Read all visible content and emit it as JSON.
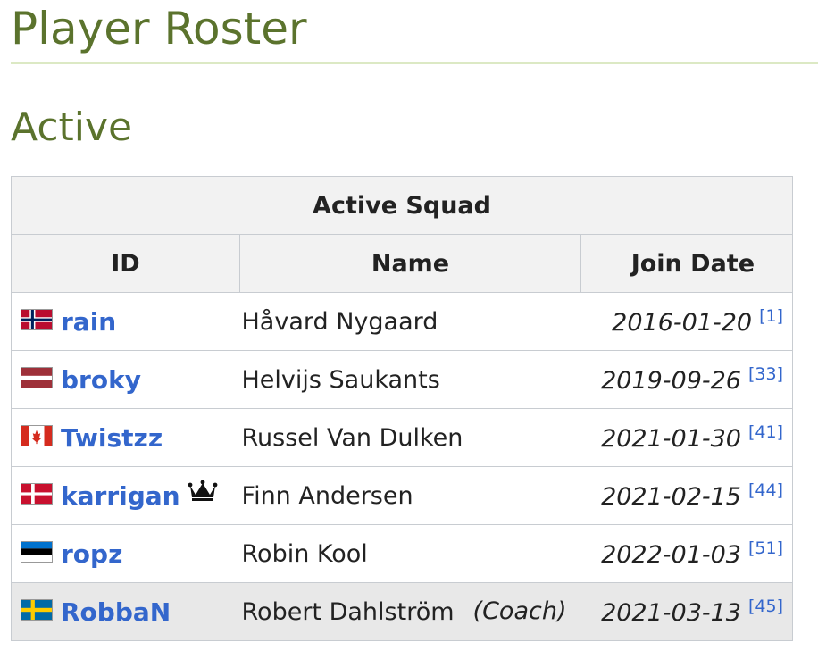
{
  "page": {
    "title": "Player Roster",
    "section_title": "Active"
  },
  "table": {
    "caption": "Active Squad",
    "headers": {
      "id": "ID",
      "name": "Name",
      "join_date": "Join Date"
    },
    "rows": [
      {
        "flag": "norway-flag-icon",
        "id": "rain",
        "name": "Håvard Nygaard",
        "role": "",
        "join_date": "2016-01-20",
        "ref": "[1]"
      },
      {
        "flag": "latvia-flag-icon",
        "id": "broky",
        "name": "Helvijs Saukants",
        "role": "",
        "join_date": "2019-09-26",
        "ref": "[33]"
      },
      {
        "flag": "canada-flag-icon",
        "id": "Twistzz",
        "name": "Russel Van Dulken",
        "role": "",
        "join_date": "2021-01-30",
        "ref": "[41]"
      },
      {
        "flag": "denmark-flag-icon",
        "id": "karrigan",
        "captain_icon": "crown-icon",
        "name": "Finn Andersen",
        "role": "",
        "join_date": "2021-02-15",
        "ref": "[44]"
      },
      {
        "flag": "estonia-flag-icon",
        "id": "ropz",
        "name": "Robin Kool",
        "role": "",
        "join_date": "2022-01-03",
        "ref": "[51]"
      },
      {
        "flag": "sweden-flag-icon",
        "id": "RobbaN",
        "name": "Robert Dahlström",
        "role": "(Coach)",
        "join_date": "2021-03-13",
        "ref": "[45]"
      }
    ]
  },
  "colors": {
    "heading": "#5b732d",
    "rule": "#dce9c4",
    "link": "#3366cc",
    "header_bg": "#f2f2f2",
    "coach_row_bg": "#e8e8e8",
    "border": "#c8ccd1"
  }
}
